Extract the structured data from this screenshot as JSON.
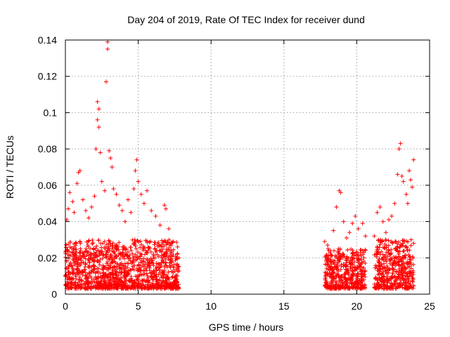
{
  "chart_data": {
    "type": "scatter",
    "title": "Day 204 of 2019, Rate Of TEC Index for receiver dund",
    "xlabel": "GPS time / hours",
    "ylabel": "ROTI / TECUs",
    "xlim": [
      0,
      25
    ],
    "ylim": [
      0,
      0.14
    ],
    "x_ticks": [
      0,
      5,
      10,
      15,
      20,
      25
    ],
    "x_tick_labels": [
      "0",
      "5",
      "10",
      "15",
      "20",
      "25"
    ],
    "y_ticks": [
      0,
      0.02,
      0.04,
      0.06,
      0.08,
      0.1,
      0.12,
      0.14
    ],
    "y_tick_labels": [
      "0",
      "0.02",
      "0.04",
      "0.06",
      "0.08",
      "0.1",
      "0.12",
      "0.14"
    ],
    "grid": true,
    "marker": "plus",
    "color": "#ff0000",
    "series": [
      {
        "points": [
          [
            0.1,
            0.041
          ],
          [
            0.2,
            0.047
          ],
          [
            0.3,
            0.056
          ],
          [
            0.5,
            0.051
          ],
          [
            0.6,
            0.045
          ],
          [
            0.8,
            0.061
          ],
          [
            0.9,
            0.067
          ],
          [
            1.0,
            0.068
          ],
          [
            1.2,
            0.052
          ],
          [
            1.4,
            0.046
          ],
          [
            1.6,
            0.042
          ],
          [
            1.8,
            0.048
          ],
          [
            2.0,
            0.054
          ],
          [
            2.1,
            0.08
          ],
          [
            2.2,
            0.096
          ],
          [
            2.2,
            0.106
          ],
          [
            2.3,
            0.102
          ],
          [
            2.3,
            0.092
          ],
          [
            2.4,
            0.078
          ],
          [
            2.5,
            0.062
          ],
          [
            2.7,
            0.057
          ],
          [
            2.8,
            0.117
          ],
          [
            2.9,
            0.135
          ],
          [
            2.9,
            0.139
          ],
          [
            3.0,
            0.079
          ],
          [
            3.1,
            0.075
          ],
          [
            3.2,
            0.07
          ],
          [
            3.3,
            0.058
          ],
          [
            3.5,
            0.055
          ],
          [
            3.7,
            0.049
          ],
          [
            3.9,
            0.046
          ],
          [
            4.1,
            0.04
          ],
          [
            4.3,
            0.052
          ],
          [
            4.5,
            0.045
          ],
          [
            4.7,
            0.058
          ],
          [
            4.8,
            0.068
          ],
          [
            4.9,
            0.074
          ],
          [
            5.0,
            0.062
          ],
          [
            5.2,
            0.055
          ],
          [
            5.4,
            0.05
          ],
          [
            5.6,
            0.057
          ],
          [
            5.9,
            0.046
          ],
          [
            6.2,
            0.043
          ],
          [
            6.5,
            0.038
          ],
          [
            6.8,
            0.049
          ],
          [
            6.9,
            0.047
          ],
          [
            7.1,
            0.036
          ],
          [
            7.4,
            0.029
          ],
          [
            7.7,
            0.026
          ],
          [
            17.8,
            0.029
          ],
          [
            18.0,
            0.027
          ],
          [
            18.2,
            0.024
          ],
          [
            18.4,
            0.035
          ],
          [
            18.6,
            0.048
          ],
          [
            18.8,
            0.057
          ],
          [
            18.9,
            0.056
          ],
          [
            19.1,
            0.04
          ],
          [
            19.3,
            0.031
          ],
          [
            19.5,
            0.034
          ],
          [
            19.7,
            0.039
          ],
          [
            19.9,
            0.043
          ],
          [
            20.1,
            0.036
          ],
          [
            20.4,
            0.039
          ],
          [
            20.6,
            0.032
          ],
          [
            21.2,
            0.032
          ],
          [
            21.4,
            0.045
          ],
          [
            21.6,
            0.048
          ],
          [
            21.8,
            0.04
          ],
          [
            22.0,
            0.034
          ],
          [
            22.2,
            0.041
          ],
          [
            22.4,
            0.043
          ],
          [
            22.6,
            0.05
          ],
          [
            22.8,
            0.066
          ],
          [
            22.9,
            0.08
          ],
          [
            23.0,
            0.083
          ],
          [
            23.1,
            0.065
          ],
          [
            23.2,
            0.062
          ],
          [
            23.4,
            0.055
          ],
          [
            23.5,
            0.05
          ],
          [
            23.6,
            0.068
          ],
          [
            23.7,
            0.063
          ],
          [
            23.8,
            0.059
          ],
          [
            23.9,
            0.074
          ]
        ],
        "bands": [
          {
            "x_start": 0.0,
            "x_end": 7.8,
            "y_min": 0.003,
            "y_max": 0.03
          },
          {
            "x_start": 17.8,
            "x_end": 20.6,
            "y_min": 0.003,
            "y_max": 0.025
          },
          {
            "x_start": 21.2,
            "x_end": 23.9,
            "y_min": 0.003,
            "y_max": 0.03
          }
        ]
      }
    ]
  }
}
